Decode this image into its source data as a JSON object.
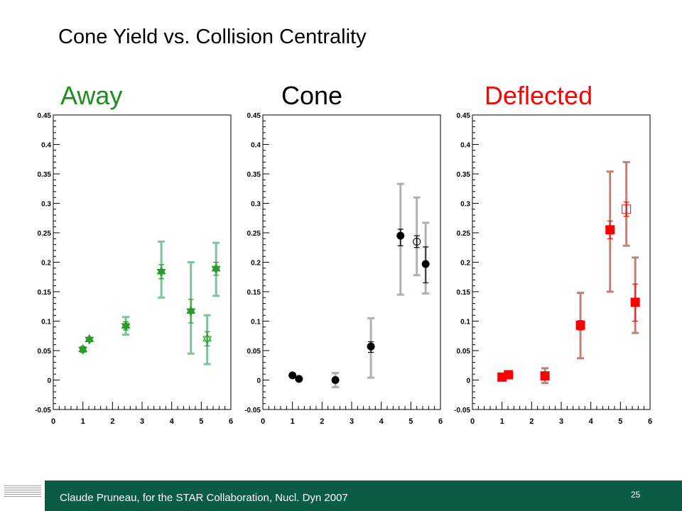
{
  "slide": {
    "title": "Cone Yield vs. Collision Centrality",
    "footer_citation": "Claude Pruneau, for the STAR Collaboration, Nucl. Dyn 2007",
    "slide_number": "25"
  },
  "colors": {
    "away_title": "#1e8c1e",
    "cone_title": "#000000",
    "deflected_title": "#ff0000",
    "footer_bg": "#0a5c46"
  },
  "chart_data": [
    {
      "type": "scatter",
      "title": "Away",
      "xlim": [
        0,
        6
      ],
      "ylim": [
        -0.05,
        0.45
      ],
      "x_tick_labels": [
        "0",
        "1",
        "2",
        "3",
        "4",
        "5",
        "6"
      ],
      "y_tick_labels": [
        "-0.05",
        "0",
        "0.05",
        "0.1",
        "0.15",
        "0.2",
        "0.25",
        "0.3",
        "0.35",
        "0.4",
        "0.45"
      ],
      "marker": "star",
      "color": "#2a9a2a",
      "syst_color": "#7cc49a",
      "series": [
        {
          "marker_fill": "filled",
          "points": [
            {
              "x": 1.0,
              "y": 0.052,
              "stat": [
                0.047,
                0.057
              ],
              "syst": null
            },
            {
              "x": 1.22,
              "y": 0.069,
              "stat": [
                0.066,
                0.072
              ],
              "syst": null
            },
            {
              "x": 2.45,
              "y": 0.092,
              "stat": [
                0.085,
                0.099
              ],
              "syst": [
                0.077,
                0.107
              ]
            },
            {
              "x": 3.65,
              "y": 0.184,
              "stat": [
                0.172,
                0.196
              ],
              "syst": [
                0.14,
                0.235
              ]
            },
            {
              "x": 4.65,
              "y": 0.117,
              "stat": [
                0.097,
                0.137
              ],
              "syst": [
                0.045,
                0.2
              ]
            },
            {
              "x": 5.5,
              "y": 0.189,
              "stat": [
                0.178,
                0.2
              ],
              "syst": [
                0.143,
                0.233
              ]
            }
          ]
        },
        {
          "marker_fill": "open",
          "points": [
            {
              "x": 5.2,
              "y": 0.07,
              "stat": [
                0.058,
                0.082
              ],
              "syst": [
                0.027,
                0.11
              ]
            }
          ]
        }
      ]
    },
    {
      "type": "scatter",
      "title": "Cone",
      "xlim": [
        0,
        6
      ],
      "ylim": [
        -0.05,
        0.45
      ],
      "x_tick_labels": [
        "0",
        "1",
        "2",
        "3",
        "4",
        "5",
        "6"
      ],
      "y_tick_labels": [
        "-0.05",
        "0",
        "0.05",
        "0.1",
        "0.15",
        "0.2",
        "0.25",
        "0.3",
        "0.35",
        "0.4",
        "0.45"
      ],
      "marker": "circle",
      "color": "#000000",
      "syst_color": "#b0b0b0",
      "series": [
        {
          "marker_fill": "filled",
          "points": [
            {
              "x": 1.0,
              "y": 0.008,
              "stat": null,
              "syst": null
            },
            {
              "x": 1.22,
              "y": 0.002,
              "stat": null,
              "syst": null
            },
            {
              "x": 2.45,
              "y": 0.0,
              "stat": null,
              "syst": [
                -0.012,
                0.012
              ]
            },
            {
              "x": 3.65,
              "y": 0.057,
              "stat": [
                0.047,
                0.065
              ],
              "syst": [
                0.004,
                0.105
              ]
            },
            {
              "x": 4.65,
              "y": 0.245,
              "stat": [
                0.228,
                0.256
              ],
              "syst": [
                0.145,
                0.333
              ]
            },
            {
              "x": 5.5,
              "y": 0.197,
              "stat": [
                0.165,
                0.226
              ],
              "syst": [
                0.147,
                0.267
              ]
            }
          ]
        },
        {
          "marker_fill": "open",
          "points": [
            {
              "x": 5.2,
              "y": 0.235,
              "stat": [
                0.225,
                0.245
              ],
              "syst": [
                0.178,
                0.31
              ]
            }
          ]
        }
      ]
    },
    {
      "type": "scatter",
      "title": "Deflected",
      "xlim": [
        0,
        6
      ],
      "ylim": [
        -0.05,
        0.45
      ],
      "x_tick_labels": [
        "0",
        "1",
        "2",
        "3",
        "4",
        "5",
        "6"
      ],
      "y_tick_labels": [
        "-0.05",
        "0",
        "0.05",
        "0.1",
        "0.15",
        "0.2",
        "0.25",
        "0.3",
        "0.35",
        "0.4",
        "0.45"
      ],
      "marker": "square",
      "color": "#ff0000",
      "syst_color": "#c08078",
      "series": [
        {
          "marker_fill": "filled",
          "points": [
            {
              "x": 1.0,
              "y": 0.005,
              "stat": null,
              "syst": null
            },
            {
              "x": 1.22,
              "y": 0.009,
              "stat": null,
              "syst": null
            },
            {
              "x": 2.45,
              "y": 0.007,
              "stat": null,
              "syst": [
                -0.005,
                0.02
              ]
            },
            {
              "x": 3.65,
              "y": 0.093,
              "stat": [
                0.085,
                0.101
              ],
              "syst": [
                0.037,
                0.148
              ]
            },
            {
              "x": 4.65,
              "y": 0.255,
              "stat": [
                0.24,
                0.27
              ],
              "syst": [
                0.15,
                0.354
              ]
            },
            {
              "x": 5.5,
              "y": 0.132,
              "stat": [
                0.1,
                0.163
              ],
              "syst": [
                0.08,
                0.208
              ]
            }
          ]
        },
        {
          "marker_fill": "open",
          "points": [
            {
              "x": 5.2,
              "y": 0.29,
              "stat": [
                0.278,
                0.302
              ],
              "syst": [
                0.228,
                0.37
              ]
            }
          ]
        }
      ]
    }
  ]
}
